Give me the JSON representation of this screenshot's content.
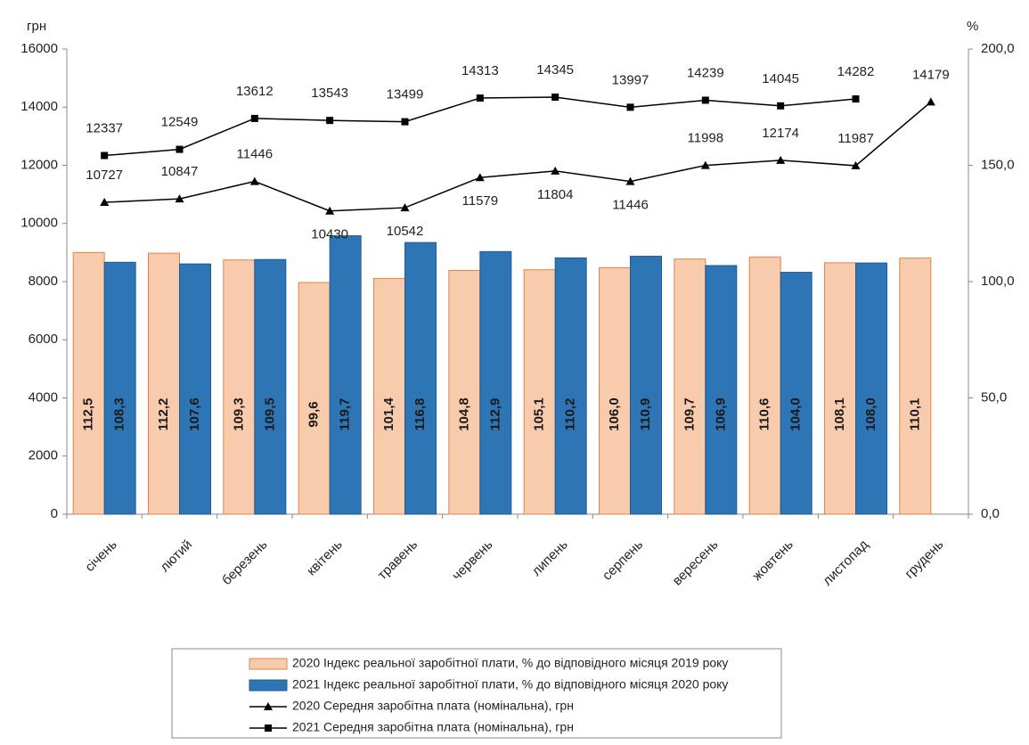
{
  "chart_data": {
    "type": "bar",
    "y_label": "грн",
    "y2_label": "%",
    "categories": [
      "січень",
      "лютий",
      "березень",
      "квітень",
      "травень",
      "червень",
      "липень",
      "серпень",
      "вересень",
      "жовтень",
      "листопад",
      "грудень"
    ],
    "series": [
      {
        "name": "2020 Індекс реальної заробітної плати, % до відповідного місяця 2019 року",
        "type": "bar",
        "axis": "y2",
        "color": "#f8cbad",
        "edge": "#e0844a",
        "values": [
          112.5,
          112.2,
          109.3,
          99.6,
          101.4,
          104.8,
          105.1,
          106.0,
          109.7,
          110.6,
          108.1,
          110.1
        ],
        "value_labels": [
          "112,5",
          "112,2",
          "109,3",
          "99,6",
          "101,4",
          "104,8",
          "105,1",
          "106,0",
          "109,7",
          "110,6",
          "108,1",
          "110,1"
        ]
      },
      {
        "name": "2021 Індекс реальної заробітної плати, % до відповідного місяця 2020 року",
        "type": "bar",
        "axis": "y2",
        "color": "#2e75b6",
        "edge": "#1f5a91",
        "values": [
          108.3,
          107.6,
          109.5,
          119.7,
          116.8,
          112.9,
          110.2,
          110.9,
          106.9,
          104.0,
          108.0,
          null
        ],
        "value_labels": [
          "108,3",
          "107,6",
          "109,5",
          "119,7",
          "116,8",
          "112,9",
          "110,2",
          "110,9",
          "106,9",
          "104,0",
          "108,0",
          null
        ]
      },
      {
        "name": "2020 Середня заробітна плата (номінальна), грн",
        "type": "line",
        "marker": "triangle",
        "color": "#000000",
        "values": [
          10727,
          10847,
          11446,
          10430,
          10542,
          11579,
          11804,
          11446,
          11998,
          12174,
          11987,
          14179
        ]
      },
      {
        "name": "2021 Середня заробітна плата (номінальна), грн",
        "type": "line",
        "marker": "square",
        "color": "#000000",
        "values": [
          12337,
          12549,
          13612,
          13543,
          13499,
          14313,
          14345,
          13997,
          14239,
          14045,
          14282,
          null
        ]
      }
    ],
    "ylim": [
      0,
      16000
    ],
    "yticks": [
      0,
      2000,
      4000,
      6000,
      8000,
      10000,
      12000,
      14000,
      16000
    ],
    "y2lim": [
      0,
      200
    ],
    "y2ticks": [
      {
        "value": 0,
        "label": "0,0"
      },
      {
        "value": 50,
        "label": "50,0"
      },
      {
        "value": 100,
        "label": "100,0"
      },
      {
        "value": 150,
        "label": "150,0"
      },
      {
        "value": 200,
        "label": "200,0"
      }
    ],
    "grid": false
  }
}
